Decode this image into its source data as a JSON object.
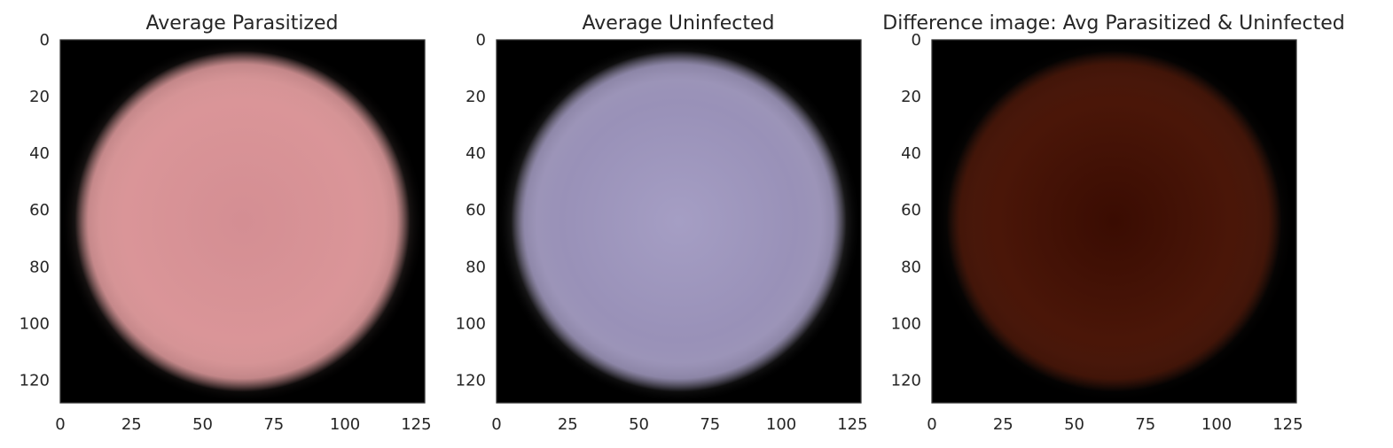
{
  "panels": [
    {
      "title": "Average Parasitized",
      "x_ticks": [
        "0",
        "25",
        "50",
        "75",
        "100",
        "125"
      ],
      "y_ticks": [
        "0",
        "20",
        "40",
        "60",
        "80",
        "100",
        "120"
      ],
      "image": {
        "background": "#000000",
        "halo_color": "#c9a49c",
        "core_color": "#da9598",
        "center_color": "#d48e93"
      }
    },
    {
      "title": "Average Uninfected",
      "x_ticks": [
        "0",
        "25",
        "50",
        "75",
        "100",
        "125"
      ],
      "y_ticks": [
        "0",
        "20",
        "40",
        "60",
        "80",
        "100",
        "120"
      ],
      "image": {
        "background": "#000000",
        "halo_color": "#d4d0d6",
        "core_color": "#9991b8",
        "center_color": "#a59ec4"
      }
    },
    {
      "title": "Difference image: Avg Parasitized & Uninfected",
      "x_ticks": [
        "0",
        "25",
        "50",
        "75",
        "100",
        "125"
      ],
      "y_ticks": [
        "0",
        "20",
        "40",
        "60",
        "80",
        "100",
        "120"
      ],
      "image": {
        "background": "#000000",
        "halo_color": "#3a2a22",
        "core_color": "#4a1608",
        "center_color": "#3a0c02"
      }
    }
  ],
  "axis_range": {
    "x": [
      0,
      128
    ],
    "y": [
      128,
      0
    ]
  }
}
